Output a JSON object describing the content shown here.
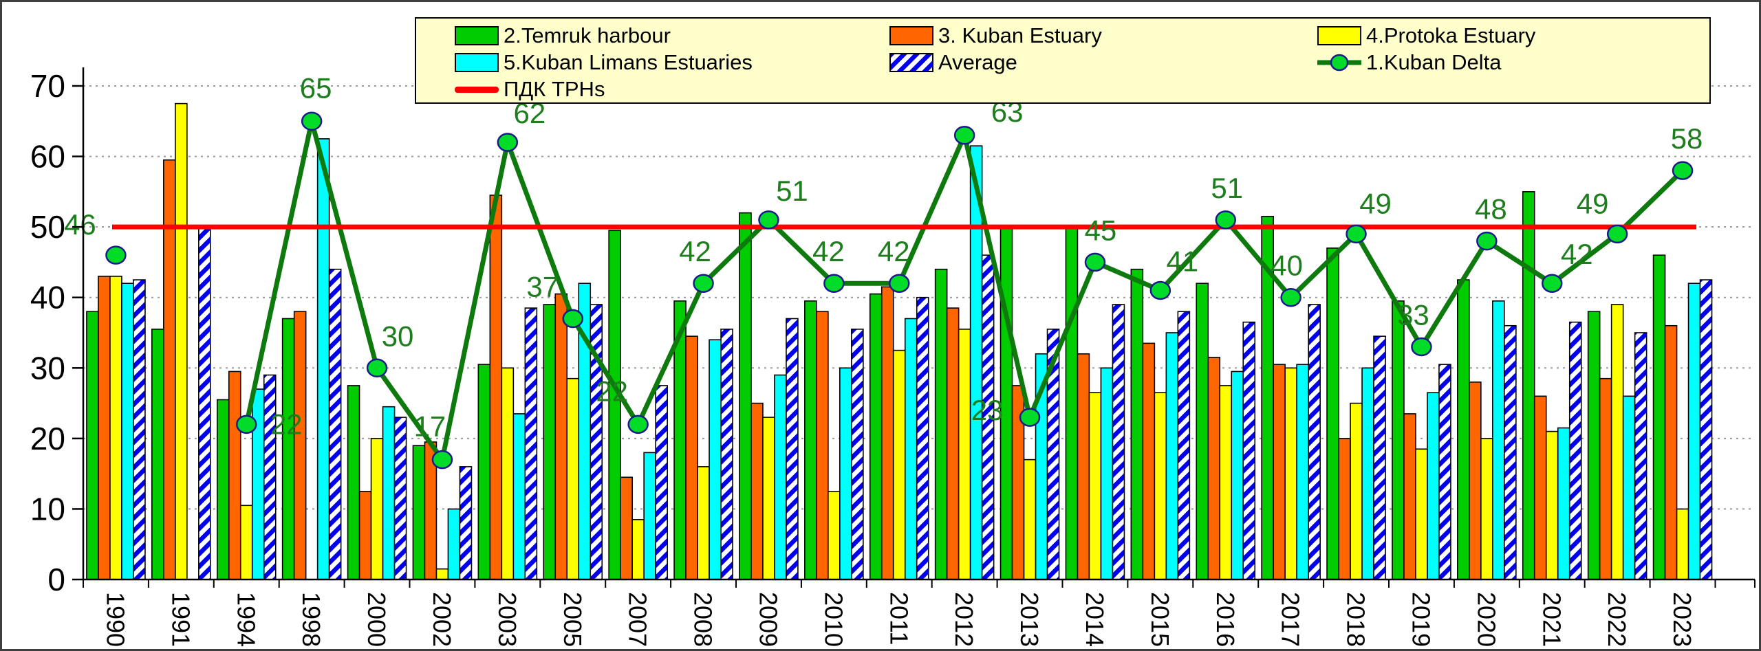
{
  "chart_data": {
    "type": "combo-bar-line",
    "categories": [
      "1990",
      "1991",
      "1994",
      "1998",
      "2000",
      "2002",
      "2003",
      "2005",
      "2007",
      "2008",
      "2009",
      "2010",
      "2011",
      "2012",
      "2013",
      "2014",
      "2015",
      "2016",
      "2017",
      "2018",
      "2019",
      "2020",
      "2021",
      "2022",
      "2023"
    ],
    "y_axis": {
      "min": 0,
      "max": 70,
      "step": 10,
      "tick_labels": [
        "0",
        "10",
        "20",
        "30",
        "40",
        "50",
        "60",
        "70"
      ],
      "grid": "horizontal-dashed"
    },
    "bar_series": [
      {
        "name": "2.Temruk harbour",
        "color": "#00CC00",
        "values": [
          38,
          35.5,
          25.5,
          37,
          27.5,
          19,
          30.5,
          39,
          49.5,
          39.5,
          52,
          39.5,
          40.5,
          44,
          50,
          50,
          44,
          42,
          51.5,
          47,
          39.5,
          42.5,
          55,
          38,
          46
        ]
      },
      {
        "name": "3. Kuban Estuary",
        "color": "#FF6600",
        "values": [
          43,
          59.5,
          29.5,
          38,
          12.5,
          19.5,
          54.5,
          40.5,
          14.5,
          34.5,
          25,
          38,
          41.5,
          38.5,
          27.5,
          32,
          33.5,
          31.5,
          30.5,
          20,
          23.5,
          28,
          26,
          28.5,
          36
        ]
      },
      {
        "name": "4.Protoka Estuary",
        "color": "#FFFF00",
        "values": [
          43,
          67.5,
          10.5,
          null,
          20,
          1.5,
          30,
          28.5,
          8.5,
          16,
          23,
          12.5,
          32.5,
          35.5,
          17,
          26.5,
          26.5,
          27.5,
          30,
          25,
          18.5,
          20,
          21,
          39,
          10
        ]
      },
      {
        "name": "5.Kuban Limans Estuaries",
        "color": "#00FFFF",
        "values": [
          42,
          null,
          27,
          62.5,
          24.5,
          10,
          23.5,
          42,
          18,
          34,
          29,
          30,
          37,
          61.5,
          32,
          30,
          35,
          29.5,
          30.5,
          30,
          26.5,
          39.5,
          21.5,
          26,
          42
        ]
      },
      {
        "name": "Average",
        "color": "#0000EE",
        "pattern": "diagonal-hatch",
        "values": [
          42.5,
          50,
          29,
          44,
          23,
          16,
          38.5,
          39,
          27.5,
          35.5,
          37,
          35.5,
          40,
          46,
          35.5,
          39,
          38,
          36.5,
          39,
          34.5,
          30.5,
          36,
          36.5,
          35,
          42.5
        ]
      }
    ],
    "line_series": {
      "name": "1.Kuban Delta",
      "color": "#0E7A0E",
      "marker_color": "#00DC28",
      "marker_edge": "#1A1A8C",
      "values": [
        46,
        null,
        22,
        65,
        30,
        17,
        62,
        37,
        22,
        42,
        51,
        42,
        42,
        63,
        23,
        45,
        41,
        51,
        40,
        49,
        33,
        48,
        42,
        49,
        58
      ],
      "point_labels": [
        "46",
        null,
        "22",
        "65",
        "30",
        "17",
        "62",
        "37",
        "22",
        "42",
        "51",
        "42",
        "42",
        "63",
        "23",
        "45",
        "41",
        "51",
        "40",
        "49",
        "33",
        "48",
        "42",
        "49",
        "58"
      ],
      "label_color": "#1E7E1E"
    },
    "threshold_line": {
      "name": "ПДК ТРНs",
      "value": 50,
      "color": "#FF0000"
    },
    "legend_position": "top"
  }
}
